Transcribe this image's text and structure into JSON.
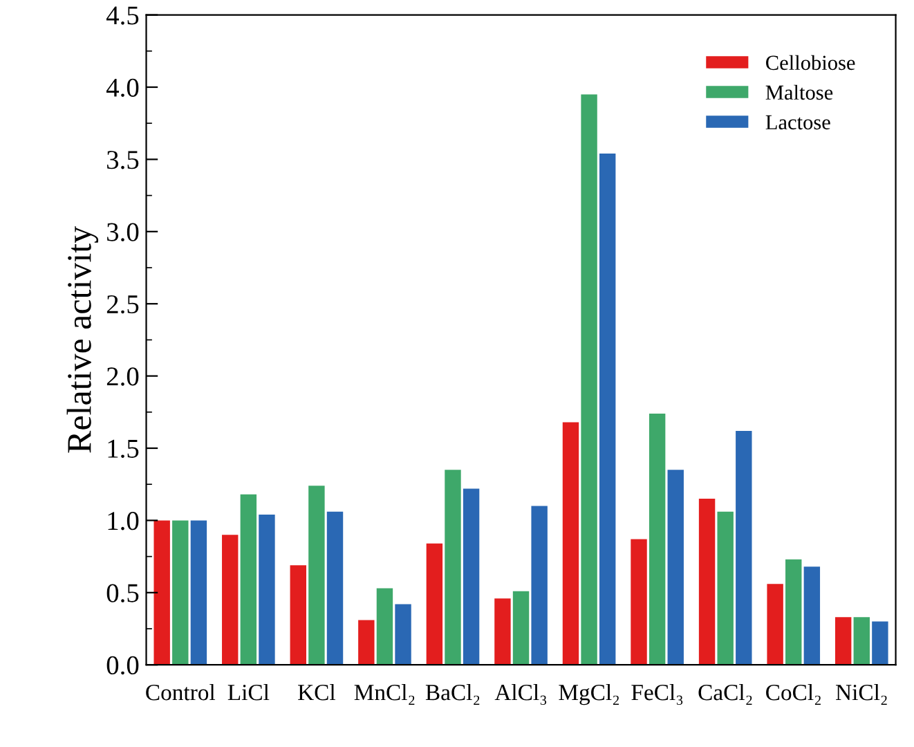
{
  "chart_data": {
    "type": "bar",
    "ylabel": "Relative activity",
    "categories": [
      "Control",
      "LiCl",
      "KCl",
      "MnCl₂",
      "BaCl₂",
      "AlCl₃",
      "MgCl₂",
      "FeCl₃",
      "CaCl₂",
      "CoCl₂",
      "NiCl₂"
    ],
    "series": [
      {
        "name": "Cellobiose",
        "color": "#e31e1e",
        "values": [
          1.0,
          0.9,
          0.69,
          0.31,
          0.84,
          0.46,
          1.68,
          0.87,
          1.15,
          0.56,
          0.33
        ]
      },
      {
        "name": "Maltose",
        "color": "#3ea86a",
        "values": [
          1.0,
          1.18,
          1.24,
          0.53,
          1.35,
          0.51,
          3.95,
          1.74,
          1.06,
          0.73,
          0.33
        ]
      },
      {
        "name": "Lactose",
        "color": "#2a68b4",
        "values": [
          1.0,
          1.04,
          1.06,
          0.42,
          1.22,
          1.1,
          3.54,
          1.35,
          1.62,
          0.68,
          0.3
        ]
      }
    ],
    "ylim": [
      0,
      4.5
    ],
    "yticks": [
      {
        "value": 0,
        "label": "0.0"
      },
      0.5,
      {
        "value": 1,
        "label": "1.0"
      },
      1.5,
      {
        "value": 2,
        "label": "2.0"
      },
      2.5,
      {
        "value": 3,
        "label": "3.0"
      },
      3.5,
      {
        "value": 4,
        "label": "4.0"
      },
      4.5
    ],
    "legend": "top right",
    "grid": false
  }
}
